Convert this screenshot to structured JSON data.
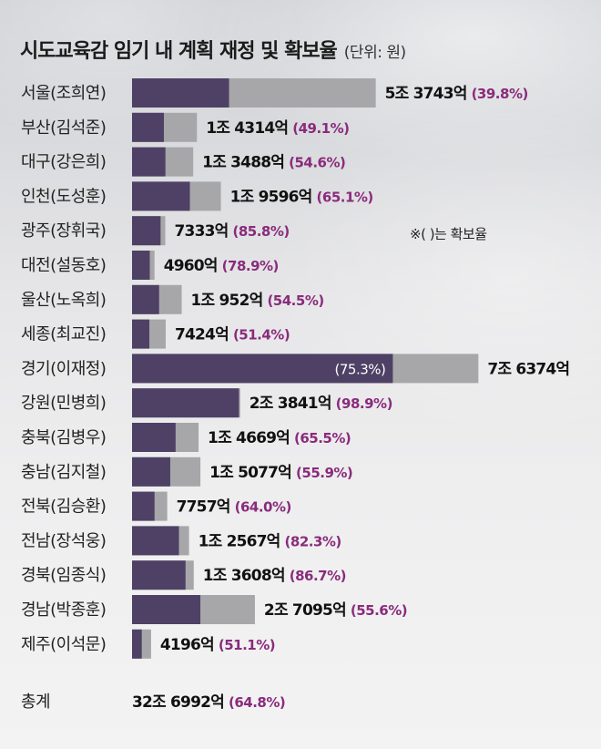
{
  "title": "시도교육감 임기 내 계획 재정 및 확보율",
  "unit": "(단위: 원)",
  "note": "※(   )는 확보율",
  "colors": {
    "secured": "#4e4165",
    "planned": "#a7a7a9",
    "percent": "#8a2b7c"
  },
  "chart_data": {
    "type": "bar",
    "orientation": "horizontal",
    "stacked": "overlay",
    "title": "시도교육감 임기 내 계획 재정 및 확보율",
    "unit": "(단위: 원)",
    "series": [
      {
        "name": "계획 재정",
        "values": [
          5.3743,
          1.4314,
          1.3488,
          1.9596,
          0.7333,
          0.496,
          1.0952,
          0.7424,
          7.6374,
          2.3841,
          1.4669,
          1.5077,
          0.7757,
          1.2567,
          1.3608,
          2.7095,
          0.4196
        ]
      },
      {
        "name": "확보율",
        "values": [
          39.8,
          49.1,
          54.6,
          65.1,
          85.8,
          78.9,
          54.5,
          51.4,
          75.3,
          98.9,
          65.5,
          55.9,
          64.0,
          82.3,
          86.7,
          55.6,
          51.1
        ]
      }
    ],
    "rows": [
      {
        "region": "서울(조희연)",
        "amount": "5조 3743억",
        "pct": "(39.8%)",
        "value": 5.3743,
        "rate": 39.8
      },
      {
        "region": "부산(김석준)",
        "amount": "1조 4314억",
        "pct": "(49.1%)",
        "value": 1.4314,
        "rate": 49.1
      },
      {
        "region": "대구(강은희)",
        "amount": "1조 3488억",
        "pct": "(54.6%)",
        "value": 1.3488,
        "rate": 54.6
      },
      {
        "region": "인천(도성훈)",
        "amount": "1조 9596억",
        "pct": "(65.1%)",
        "value": 1.9596,
        "rate": 65.1
      },
      {
        "region": "광주(장휘국)",
        "amount": "7333억",
        "pct": "(85.8%)",
        "value": 0.7333,
        "rate": 85.8
      },
      {
        "region": "대전(설동호)",
        "amount": "4960억",
        "pct": "(78.9%)",
        "value": 0.496,
        "rate": 78.9
      },
      {
        "region": "울산(노옥희)",
        "amount": "1조 952억",
        "pct": "(54.5%)",
        "value": 1.0952,
        "rate": 54.5
      },
      {
        "region": "세종(최교진)",
        "amount": "7424억",
        "pct": "(51.4%)",
        "value": 0.7424,
        "rate": 51.4
      },
      {
        "region": "경기(이재정)",
        "amount": "7조 6374억",
        "pct": "(75.3%)",
        "value": 7.6374,
        "rate": 75.3,
        "pct_inside": true
      },
      {
        "region": "강원(민병희)",
        "amount": "2조 3841억",
        "pct": "(98.9%)",
        "value": 2.3841,
        "rate": 98.9
      },
      {
        "region": "충북(김병우)",
        "amount": "1조 4669억",
        "pct": "(65.5%)",
        "value": 1.4669,
        "rate": 65.5
      },
      {
        "region": "충남(김지철)",
        "amount": "1조 5077억",
        "pct": "(55.9%)",
        "value": 1.5077,
        "rate": 55.9
      },
      {
        "region": "전북(김승환)",
        "amount": "7757억",
        "pct": "(64.0%)",
        "value": 0.7757,
        "rate": 64.0
      },
      {
        "region": "전남(장석웅)",
        "amount": "1조 2567억",
        "pct": "(82.3%)",
        "value": 1.2567,
        "rate": 82.3
      },
      {
        "region": "경북(임종식)",
        "amount": "1조 3608억",
        "pct": "(86.7%)",
        "value": 1.3608,
        "rate": 86.7
      },
      {
        "region": "경남(박종훈)",
        "amount": "2조 7095억",
        "pct": "(55.6%)",
        "value": 2.7095,
        "rate": 55.6
      },
      {
        "region": "제주(이석문)",
        "amount": "4196억",
        "pct": "(51.1%)",
        "value": 0.4196,
        "rate": 51.1
      }
    ],
    "total": {
      "label": "총계",
      "amount": "32조 6992억",
      "pct": "(64.8%)"
    }
  }
}
